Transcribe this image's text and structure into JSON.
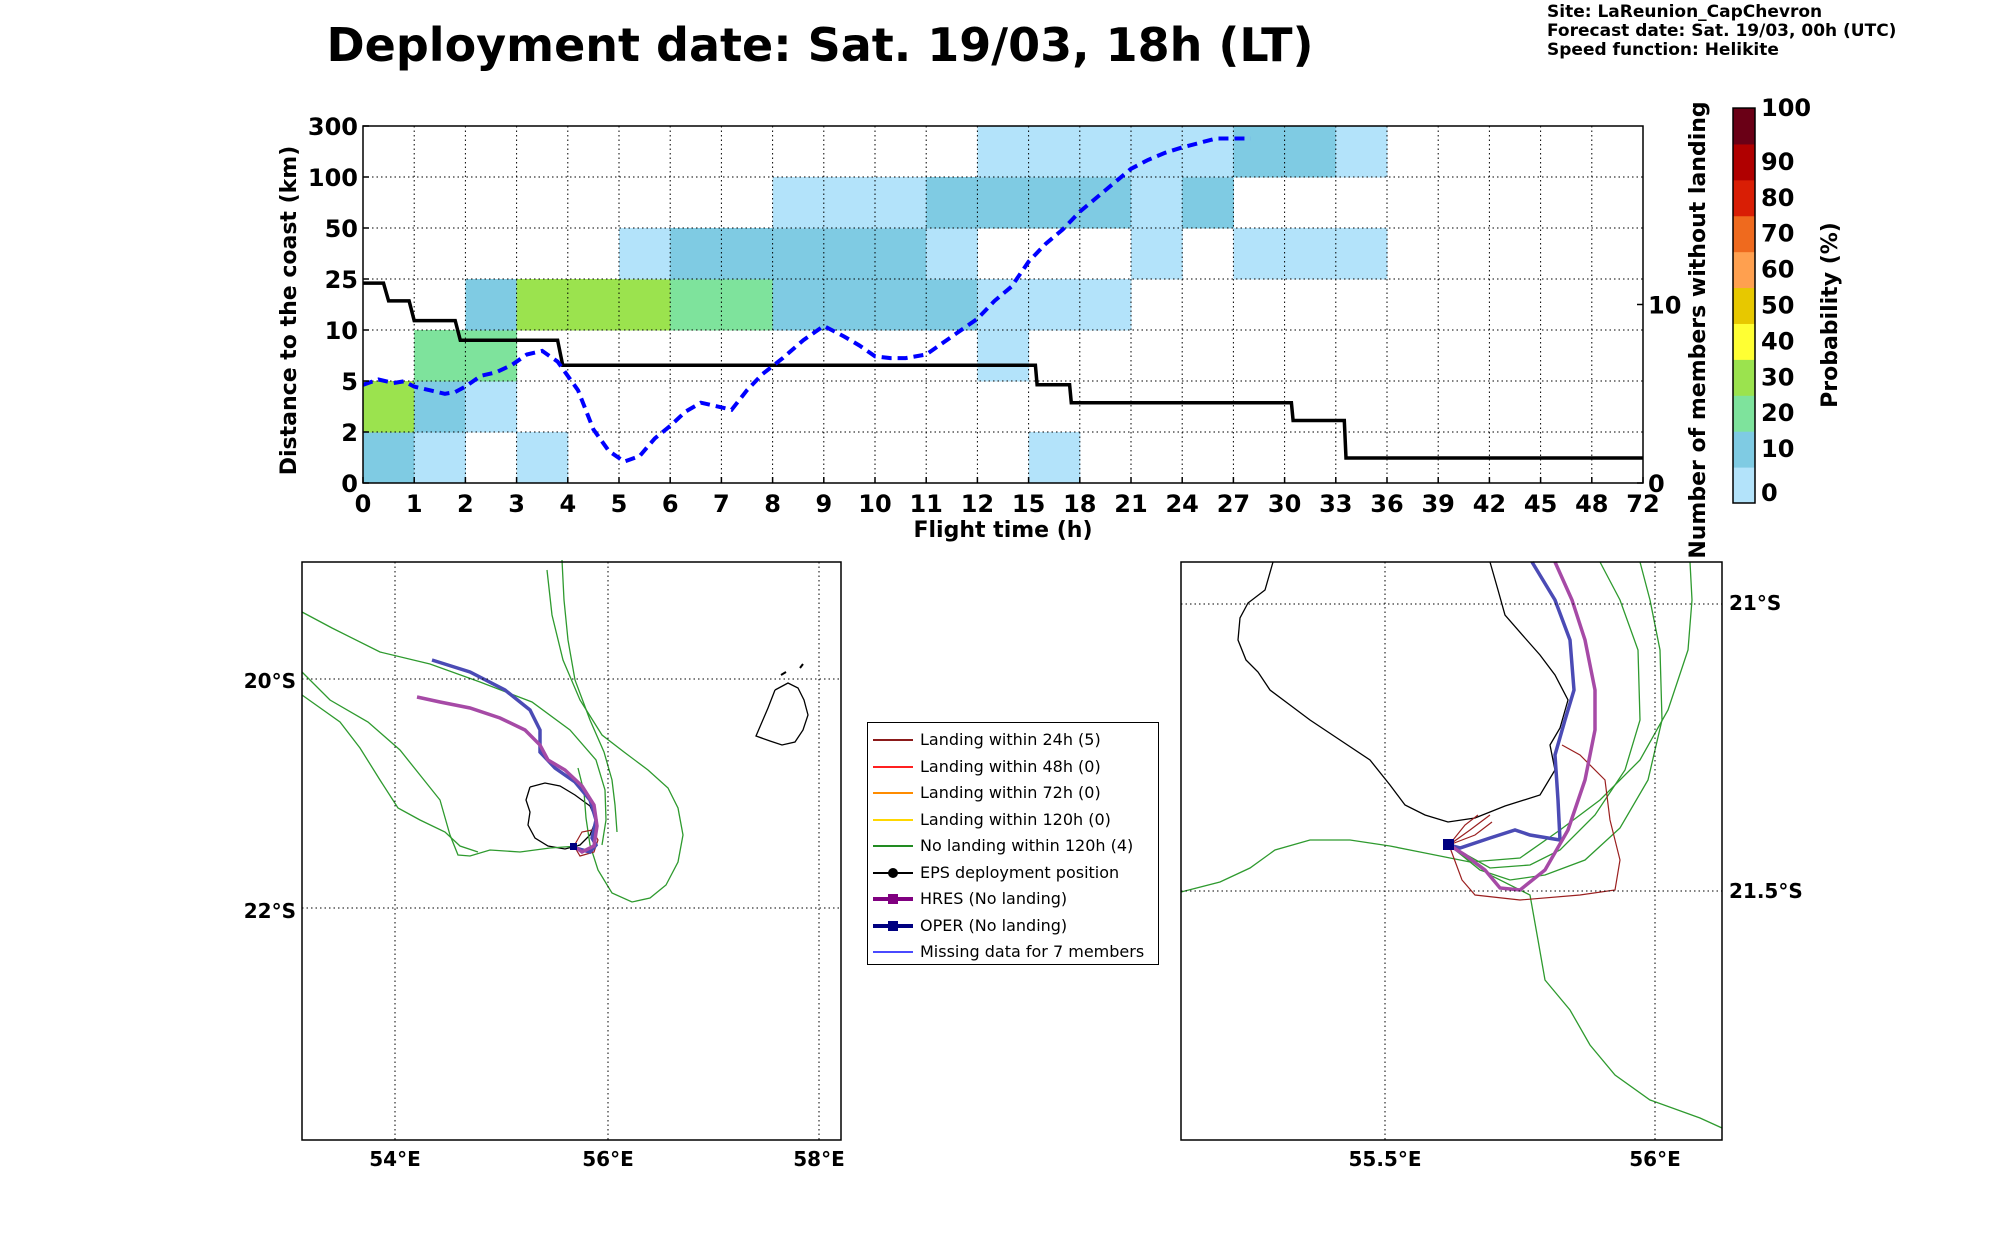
{
  "header": {
    "title": "Deployment date: Sat. 19/03, 18h (LT)",
    "site": "Site: LaReunion_CapChevron",
    "forecast_date": "Forecast date: Sat. 19/03, 00h (UTC)",
    "speed_function": "Speed function: Helikite"
  },
  "chart_data": [
    {
      "type": "heatmap",
      "xlabel": "Flight time (h)",
      "ylabel": "Distance to the coast (km)",
      "y2label": "Number of members without landing",
      "colorbar_label": "Probability (%)",
      "x_ticks": [
        "0",
        "1",
        "2",
        "3",
        "4",
        "5",
        "6",
        "7",
        "8",
        "9",
        "10",
        "11",
        "12",
        "15",
        "18",
        "21",
        "24",
        "27",
        "30",
        "33",
        "36",
        "39",
        "42",
        "45",
        "48",
        "72"
      ],
      "y_ticks": [
        "0",
        "2",
        "5",
        "10",
        "25",
        "50",
        "100",
        "300"
      ],
      "y2_ticks": [
        "0",
        "10"
      ],
      "y2_range": [
        0,
        20
      ],
      "colorbar_ticks": [
        "0",
        "10",
        "20",
        "30",
        "40",
        "50",
        "60",
        "70",
        "80",
        "90",
        "100"
      ],
      "colorbar_colors": [
        "#b3e3fa",
        "#7fcbe3",
        "#7ee39c",
        "#9be34e",
        "#ffff33",
        "#e7c800",
        "#ffa04f",
        "#ef6a1e",
        "#d91e05",
        "#b00000",
        "#6a0016"
      ],
      "grid": true,
      "cells": [
        {
          "x": 0,
          "y": 0,
          "p": 10
        },
        {
          "x": 1,
          "y": 0,
          "p": 0
        },
        {
          "x": 3,
          "y": 0,
          "p": 0
        },
        {
          "x": 15,
          "y": 0,
          "p": 0
        },
        {
          "x": 0,
          "y": 1,
          "p": 30
        },
        {
          "x": 1,
          "y": 1,
          "p": 10
        },
        {
          "x": 2,
          "y": 1,
          "p": 0
        },
        {
          "x": 1,
          "y": 2,
          "p": 20
        },
        {
          "x": 2,
          "y": 2,
          "p": 20
        },
        {
          "x": 12,
          "y": 2,
          "p": 0
        },
        {
          "x": 2,
          "y": 3,
          "p": 10
        },
        {
          "x": 3,
          "y": 3,
          "p": 30
        },
        {
          "x": 4,
          "y": 3,
          "p": 30
        },
        {
          "x": 5,
          "y": 3,
          "p": 30
        },
        {
          "x": 6,
          "y": 3,
          "p": 20
        },
        {
          "x": 7,
          "y": 3,
          "p": 20
        },
        {
          "x": 8,
          "y": 3,
          "p": 10
        },
        {
          "x": 9,
          "y": 3,
          "p": 10
        },
        {
          "x": 10,
          "y": 3,
          "p": 10
        },
        {
          "x": 11,
          "y": 3,
          "p": 10
        },
        {
          "x": 12,
          "y": 3,
          "p": 0
        },
        {
          "x": 15,
          "y": 3,
          "p": 0
        },
        {
          "x": 18,
          "y": 3,
          "p": 0
        },
        {
          "x": 5,
          "y": 4,
          "p": 0
        },
        {
          "x": 6,
          "y": 4,
          "p": 10
        },
        {
          "x": 7,
          "y": 4,
          "p": 10
        },
        {
          "x": 8,
          "y": 4,
          "p": 10
        },
        {
          "x": 9,
          "y": 4,
          "p": 10
        },
        {
          "x": 10,
          "y": 4,
          "p": 10
        },
        {
          "x": 11,
          "y": 4,
          "p": 0
        },
        {
          "x": 21,
          "y": 4,
          "p": 0
        },
        {
          "x": 27,
          "y": 4,
          "p": 0
        },
        {
          "x": 30,
          "y": 4,
          "p": 0
        },
        {
          "x": 33,
          "y": 4,
          "p": 0
        },
        {
          "x": 8,
          "y": 5,
          "p": 0
        },
        {
          "x": 9,
          "y": 5,
          "p": 0
        },
        {
          "x": 10,
          "y": 5,
          "p": 0
        },
        {
          "x": 11,
          "y": 5,
          "p": 10
        },
        {
          "x": 12,
          "y": 5,
          "p": 10
        },
        {
          "x": 15,
          "y": 5,
          "p": 10
        },
        {
          "x": 18,
          "y": 5,
          "p": 10
        },
        {
          "x": 21,
          "y": 5,
          "p": 0
        },
        {
          "x": 24,
          "y": 5,
          "p": 10
        },
        {
          "x": 12,
          "y": 6,
          "p": 0
        },
        {
          "x": 15,
          "y": 6,
          "p": 0
        },
        {
          "x": 18,
          "y": 6,
          "p": 0
        },
        {
          "x": 21,
          "y": 6,
          "p": 0
        },
        {
          "x": 24,
          "y": 6,
          "p": 0
        },
        {
          "x": 27,
          "y": 6,
          "p": 10
        },
        {
          "x": 30,
          "y": 6,
          "p": 10
        },
        {
          "x": 33,
          "y": 6,
          "p": 0
        }
      ],
      "series": [
        {
          "name": "Number of members without landing",
          "style": "solid",
          "color": "#000000",
          "x": [
            0,
            0.4,
            0.5,
            0.9,
            1.0,
            1.8,
            1.9,
            3.8,
            3.9,
            15.4,
            15.5,
            17.4,
            17.5,
            30.4,
            30.5,
            33.5,
            33.6,
            72
          ],
          "values": [
            11.2,
            11.2,
            10.2,
            10.2,
            9.1,
            9.1,
            8.0,
            8.0,
            6.6,
            6.6,
            5.5,
            5.5,
            4.5,
            4.5,
            3.5,
            3.5,
            1.4,
            1.4
          ]
        },
        {
          "style": "dashed",
          "color": "#0000ff",
          "x": [
            0,
            0.3,
            0.6,
            0.8,
            1.0,
            1.3,
            1.6,
            1.8,
            2.0,
            2.3,
            2.6,
            2.9,
            3.2,
            3.5,
            3.8,
            4.2,
            4.5,
            4.8,
            5.1,
            5.4,
            5.7,
            6.0,
            6.3,
            6.6,
            6.9,
            7.2,
            7.5,
            7.8,
            8.2,
            8.6,
            9.0,
            9.4,
            9.7,
            10.0,
            10.3,
            10.6,
            11.0,
            11.5,
            12.0,
            13.0,
            14.0,
            15.0,
            16.0,
            17.0,
            18.0,
            19.0,
            20.0,
            21.0,
            22.0,
            23.0,
            24.0,
            26.0,
            28.0
          ],
          "values": [
            5.5,
            5.8,
            5.6,
            5.7,
            5.4,
            5.2,
            5.0,
            5.1,
            5.4,
            6.0,
            6.2,
            6.6,
            7.2,
            7.4,
            6.8,
            5.2,
            3.0,
            1.8,
            1.2,
            1.5,
            2.5,
            3.2,
            4.0,
            4.5,
            4.3,
            4.1,
            5.2,
            6.1,
            7.0,
            8.0,
            8.8,
            8.2,
            7.7,
            7.1,
            7.0,
            7.0,
            7.2,
            8.2,
            9.2,
            10.2,
            11.0,
            12.4,
            13.4,
            14.2,
            15.2,
            16.0,
            16.8,
            17.6,
            18.1,
            18.5,
            18.8,
            19.3,
            19.3
          ]
        }
      ]
    }
  ],
  "map_left": {
    "lon_ticks": [
      "54°E",
      "56°E",
      "58°E"
    ],
    "lat_ticks": [
      "20°S",
      "22°S"
    ]
  },
  "map_right": {
    "lon_ticks": [
      "55.5°E",
      "56°E"
    ],
    "lat_ticks": [
      "21°S",
      "21.5°S"
    ]
  },
  "legend": {
    "items": [
      {
        "label": "Landing within 24h (5)",
        "color": "#8b1a1a",
        "kind": "line"
      },
      {
        "label": "Landing within 48h (0)",
        "color": "#ff2020",
        "kind": "line"
      },
      {
        "label": "Landing within 72h (0)",
        "color": "#ff8c00",
        "kind": "line"
      },
      {
        "label": "Landing within 120h (0)",
        "color": "#ffd700",
        "kind": "line"
      },
      {
        "label": "No landing within 120h (4)",
        "color": "#228b22",
        "kind": "line"
      },
      {
        "label": "EPS deployment position",
        "color": "#000000",
        "kind": "dot"
      },
      {
        "label": "HRES (No landing)",
        "color": "#800080",
        "kind": "square-thick"
      },
      {
        "label": "OPER (No landing)",
        "color": "#000080",
        "kind": "square-thick"
      },
      {
        "label": "Missing data for 7 members",
        "color": "#4a4aff",
        "kind": "line"
      }
    ]
  }
}
